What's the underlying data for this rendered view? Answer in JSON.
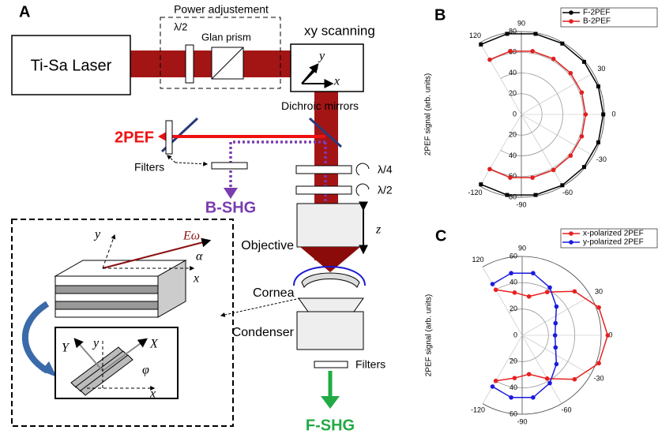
{
  "diagram": {
    "panel_label": "A",
    "laser": "Ti-Sa Laser",
    "power": "Power adjustement",
    "half_wave_top": "λ/2",
    "glan": "Glan prism",
    "scanning": "xy scanning",
    "scan_x": "x",
    "scan_y": "y",
    "dichroic": "Dichroic mirrors",
    "two_pef": "2PEF",
    "filters_top": "Filters",
    "b_shg": "B-SHG",
    "quarter": "λ/4",
    "half": "λ/2",
    "z": "z",
    "objective": "Objective",
    "cornea": "Cornea",
    "condenser": "Condenser",
    "filters_bottom": "Filters",
    "f_shg": "F-SHG",
    "inset": {
      "y": "y",
      "e_field": "Eω",
      "alpha": "α",
      "x": "x",
      "big_y": "Y",
      "y2": "y",
      "big_x": "X",
      "phi": "φ",
      "x2": "x"
    }
  },
  "chart_data": [
    {
      "type": "polar",
      "panel_label": "B",
      "ylabel": "2PEF signal (arb. units)",
      "x": [
        -120,
        -100,
        -80,
        -60,
        -40,
        -20,
        0,
        20,
        40,
        60,
        80,
        100,
        120
      ],
      "series": [
        {
          "name": "F-2PEF",
          "color": "#000000",
          "marker": "square",
          "values": [
            78,
            79,
            79,
            79,
            79,
            79,
            79,
            79,
            79,
            79,
            79,
            79,
            78
          ]
        },
        {
          "name": "B-2PEF",
          "color": "#e02020",
          "marker": "circle",
          "values": [
            61,
            62,
            62,
            62,
            62,
            62,
            62,
            62,
            62,
            62,
            62,
            62,
            61
          ]
        }
      ],
      "xlim": [
        -120,
        120
      ],
      "xticks": [
        -120,
        -90,
        -60,
        -30,
        0,
        30,
        90,
        120
      ],
      "ylim": [
        0,
        80
      ],
      "yticks": [
        0,
        20,
        40,
        60,
        80
      ],
      "legend": "upper right"
    },
    {
      "type": "polar",
      "panel_label": "C",
      "ylabel": "2PEF signal (arb. units)",
      "x": [
        -120,
        -100,
        -80,
        -60,
        -40,
        -20,
        0,
        20,
        40,
        60,
        80,
        100,
        120
      ],
      "series": [
        {
          "name": "x-polarized 2PEF",
          "color": "#e82020",
          "marker": "circle",
          "values": [
            40,
            33,
            30,
            38,
            52,
            62,
            65,
            62,
            52,
            38,
            30,
            33,
            40
          ]
        },
        {
          "name": "y-polarized 2PEF",
          "color": "#1a1ae0",
          "marker": "circle",
          "values": [
            45,
            48,
            48,
            42,
            34,
            27,
            25,
            27,
            34,
            42,
            48,
            48,
            45
          ]
        }
      ],
      "xlim": [
        -120,
        120
      ],
      "xticks": [
        -120,
        -90,
        -60,
        -30,
        0,
        30,
        90,
        120
      ],
      "ylim": [
        0,
        60
      ],
      "yticks": [
        0,
        20,
        40,
        60
      ],
      "legend": "upper right"
    }
  ]
}
